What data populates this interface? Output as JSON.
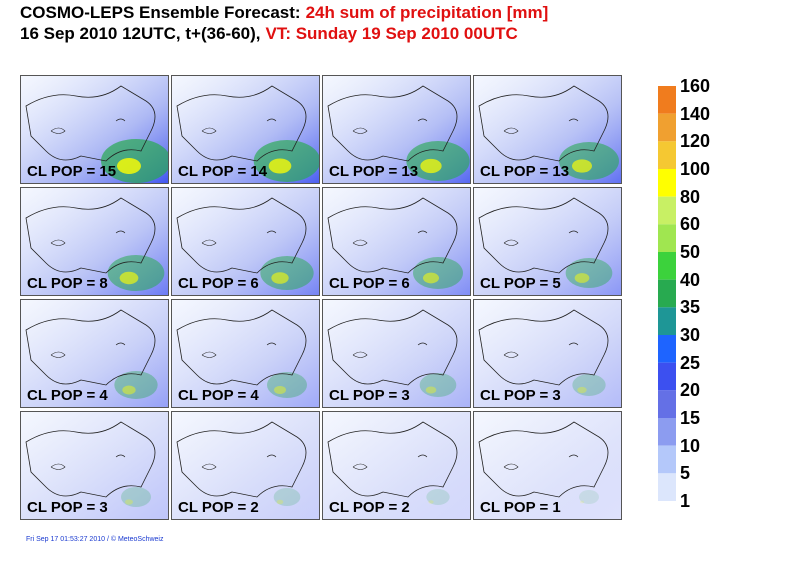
{
  "header": {
    "line1": {
      "lead": "COSMO-LEPS Ensemble Forecast:",
      "highlight": "24h sum of precipitation [mm]"
    },
    "line2": {
      "lead": "16 Sep 2010 12UTC, t+(36-60),",
      "highlight": "VT: Sunday 19 Sep 2010 00UTC"
    }
  },
  "panels": [
    {
      "label": "CL POP = 15"
    },
    {
      "label": "CL POP = 14"
    },
    {
      "label": "CL POP = 13"
    },
    {
      "label": "CL POP = 13"
    },
    {
      "label": "CL POP = 8"
    },
    {
      "label": "CL POP = 6"
    },
    {
      "label": "CL POP = 6"
    },
    {
      "label": "CL POP = 5"
    },
    {
      "label": "CL POP = 4"
    },
    {
      "label": "CL POP = 4"
    },
    {
      "label": "CL POP = 3"
    },
    {
      "label": "CL POP = 3"
    },
    {
      "label": "CL POP = 3"
    },
    {
      "label": "CL POP = 2"
    },
    {
      "label": "CL POP = 2"
    },
    {
      "label": "CL POP = 1"
    }
  ],
  "legend": {
    "levels": [
      160,
      140,
      120,
      100,
      80,
      60,
      50,
      40,
      35,
      30,
      25,
      20,
      15,
      10,
      5,
      1
    ],
    "colors": [
      "#f07c1e",
      "#f0a030",
      "#f5c832",
      "#ffff00",
      "#c8f064",
      "#a0e650",
      "#3cd23c",
      "#28aa50",
      "#1e9696",
      "#1e64ff",
      "#3c50f0",
      "#6470e6",
      "#8c9cf0",
      "#b4c8fa",
      "#dce6fc"
    ]
  },
  "footer": "Fri Sep 17 01:53:27 2010 / © MeteoSchweiz"
}
